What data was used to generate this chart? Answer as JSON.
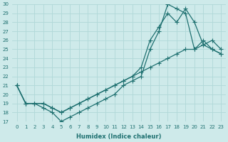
{
  "xlabel": "Humidex (Indice chaleur)",
  "background_color": "#ceeaea",
  "grid_color": "#b0d8d8",
  "line_color": "#1e7070",
  "ylim": [
    17,
    30
  ],
  "xlim": [
    -0.5,
    23.5
  ],
  "yticks": [
    17,
    18,
    19,
    20,
    21,
    22,
    23,
    24,
    25,
    26,
    27,
    28,
    29,
    30
  ],
  "xticks": [
    0,
    1,
    2,
    3,
    4,
    5,
    6,
    7,
    8,
    9,
    10,
    11,
    12,
    13,
    14,
    15,
    16,
    17,
    18,
    19,
    20,
    21,
    22,
    23
  ],
  "series1_x": [
    0,
    1,
    2,
    3,
    4,
    5,
    6,
    7,
    8,
    9,
    10,
    11,
    12,
    13,
    14,
    15,
    16,
    17,
    18,
    19,
    20,
    21,
    22,
    23
  ],
  "series1_y": [
    21,
    19,
    19,
    18.5,
    18,
    17,
    17.5,
    18,
    18.5,
    19,
    19.5,
    20,
    21,
    21.5,
    22,
    25,
    27,
    30,
    29.5,
    29,
    25,
    26,
    25,
    24.5
  ],
  "series2_x": [
    0,
    1,
    2,
    3,
    4,
    5,
    6,
    7,
    8,
    9,
    10,
    11,
    12,
    13,
    14,
    15,
    16,
    17,
    18,
    19,
    20,
    21,
    22,
    23
  ],
  "series2_y": [
    21,
    19,
    19,
    19,
    18.5,
    18,
    18.5,
    19,
    19.5,
    20,
    20.5,
    21,
    21.5,
    22,
    22.5,
    23,
    23.5,
    24,
    24.5,
    25,
    25,
    25.5,
    25,
    24.5
  ],
  "series3_x": [
    0,
    1,
    2,
    3,
    4,
    5,
    6,
    7,
    8,
    9,
    10,
    11,
    12,
    13,
    14,
    15,
    16,
    17,
    18,
    19,
    20,
    21,
    22,
    23
  ],
  "series3_y": [
    21,
    19,
    19,
    19,
    18.5,
    18,
    18.5,
    19,
    19.5,
    20,
    20.5,
    21,
    21.5,
    22,
    23,
    26,
    27.5,
    29,
    28,
    29.5,
    28,
    25.5,
    26,
    25
  ]
}
